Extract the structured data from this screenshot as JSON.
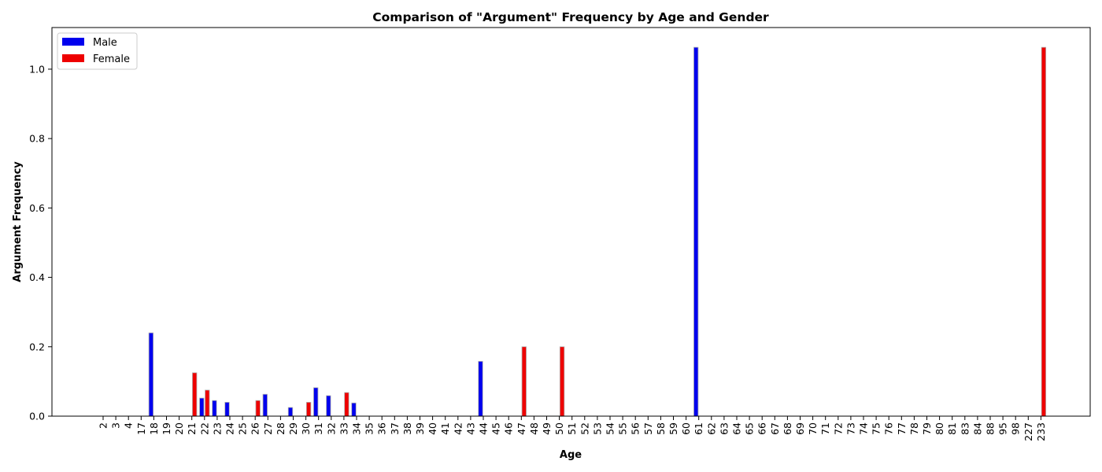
{
  "chart_data": {
    "type": "bar",
    "title": "Comparison of \"Argument\" Frequency by Age and Gender",
    "xlabel": "Age",
    "ylabel": "Argument Frequency",
    "ylim": [
      0,
      1.12
    ],
    "yticks": [
      "0.0",
      "0.2",
      "0.4",
      "0.6",
      "0.8",
      "1.0"
    ],
    "grid": false,
    "legend_position": "top-left",
    "categories": [
      "2",
      "3",
      "4",
      "17",
      "18",
      "19",
      "20",
      "21",
      "22",
      "23",
      "24",
      "25",
      "26",
      "27",
      "28",
      "29",
      "30",
      "31",
      "32",
      "33",
      "34",
      "35",
      "36",
      "37",
      "38",
      "39",
      "40",
      "41",
      "42",
      "43",
      "44",
      "45",
      "46",
      "47",
      "48",
      "49",
      "50",
      "51",
      "52",
      "53",
      "54",
      "55",
      "56",
      "57",
      "58",
      "59",
      "60",
      "61",
      "62",
      "63",
      "64",
      "65",
      "66",
      "67",
      "68",
      "69",
      "70",
      "71",
      "72",
      "73",
      "74",
      "75",
      "76",
      "77",
      "78",
      "79",
      "80",
      "81",
      "83",
      "84",
      "88",
      "95",
      "98",
      "227",
      "233"
    ],
    "series": [
      {
        "name": "Male",
        "color": "#0000ee",
        "values": [
          0,
          0,
          0,
          0,
          0.24,
          0,
          0,
          0,
          0.052,
          0.045,
          0.04,
          0,
          0,
          0.063,
          0,
          0.025,
          0,
          0.082,
          0.059,
          0,
          0.038,
          0,
          0,
          0,
          0,
          0,
          0,
          0,
          0,
          0,
          0.158,
          0,
          0,
          0,
          0,
          0,
          0,
          0,
          0,
          0,
          0,
          0,
          0,
          0,
          0,
          0,
          0,
          1.063,
          0,
          0,
          0,
          0,
          0,
          0,
          0,
          0,
          0,
          0,
          0,
          0,
          0,
          0,
          0,
          0,
          0,
          0,
          0,
          0,
          0,
          0,
          0,
          0,
          0,
          0,
          0
        ]
      },
      {
        "name": "Female",
        "color": "#ee0000",
        "values": [
          0,
          0,
          0,
          0,
          0,
          0,
          0,
          0.125,
          0.075,
          0,
          0,
          0,
          0.045,
          0,
          0,
          0,
          0.04,
          0,
          0,
          0.068,
          0,
          0,
          0,
          0,
          0,
          0,
          0,
          0,
          0,
          0,
          0,
          0,
          0,
          0.2,
          0,
          0,
          0.2,
          0,
          0,
          0,
          0,
          0,
          0,
          0,
          0,
          0,
          0,
          0,
          0,
          0,
          0,
          0,
          0,
          0,
          0,
          0,
          0,
          0,
          0,
          0,
          0,
          0,
          0,
          0,
          0,
          0,
          0,
          0,
          0,
          0,
          0,
          0,
          0,
          0,
          1.063
        ]
      }
    ]
  }
}
